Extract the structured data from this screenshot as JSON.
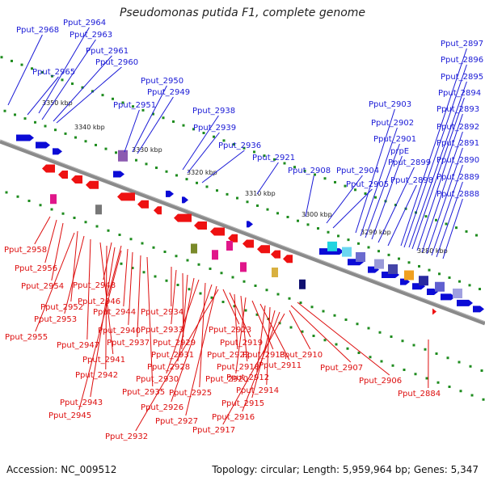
{
  "title": "Pseudomonas putida F1, complete genome",
  "footer": {
    "accession": "Accession: NC_009512",
    "summary": "Topology: circular; Length: 5,959,964 bp; Genes: 5,347"
  },
  "colors": {
    "forward_label": "#1a1ad6",
    "reverse_label": "#dd0d0d",
    "forward_gene": "#0b0bd6",
    "reverse_gene": "#ee1111",
    "backbone": "#8a8a8a",
    "tick": "#1f8c1f"
  },
  "scale_ticks": [
    "3350 kbp",
    "3340 kbp",
    "3330 kbp",
    "3320 kbp",
    "3310 kbp",
    "3300 kbp",
    "3290 kbp",
    "3280 kbp"
  ],
  "forward_labels": [
    "Pput_2968",
    "Pput_2964",
    "Pput_2963",
    "Pput_2965",
    "Pput_2961",
    "Pput_2960",
    "Pput_2950",
    "Pput_2949",
    "Pput_2951",
    "Pput_2938",
    "Pput_2939",
    "Pput_2936",
    "Pput_2921",
    "Pput_2908",
    "Pput_2904",
    "Pput_2905",
    "Pput_2903",
    "Pput_2902",
    "Pput_2901",
    "prpE",
    "Pput_2899",
    "Pput_2898",
    "Pput_2897",
    "Pput_2896",
    "Pput_2895",
    "Pput_2894",
    "Pput_2893",
    "Pput_2892",
    "Pput_2891",
    "Pput_2890",
    "Pput_2889",
    "Pput_2888"
  ],
  "reverse_labels": [
    "Pput_2958",
    "Pput_2956",
    "Pput_2954",
    "Pput_2948",
    "Pput_2946",
    "Pput_2952",
    "Pput_2944",
    "Pput_2953",
    "Pput_2955",
    "Pput_2940",
    "Pput_2947",
    "Pput_2937",
    "Pput_2941",
    "Pput_2942",
    "Pput_2943",
    "Pput_2945",
    "Pput_2935",
    "Pput_2934",
    "Pput_2933",
    "Pput_2929",
    "Pput_2931",
    "Pput_2928",
    "Pput_2930",
    "Pput_2925",
    "Pput_2926",
    "Pput_2927",
    "Pput_2932",
    "Pput_2923",
    "Pput_2919",
    "Pput_2922",
    "Pput_2918",
    "Pput_2920",
    "Pput_2913",
    "Pput_2911",
    "Pput_2912",
    "Pput_2914",
    "Pput_2915",
    "Pput_2916",
    "Pput_2917",
    "Pput_2910",
    "Pput_2907",
    "Pput_2906",
    "Pput_2884"
  ]
}
